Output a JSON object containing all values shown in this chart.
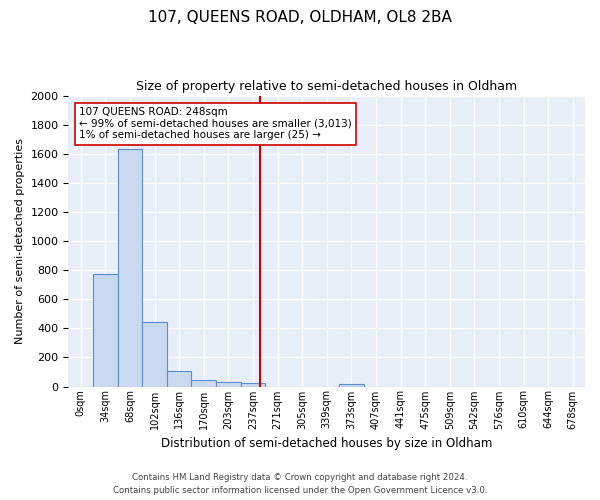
{
  "title": "107, QUEENS ROAD, OLDHAM, OL8 2BA",
  "subtitle": "Size of property relative to semi-detached houses in Oldham",
  "xlabel": "Distribution of semi-detached houses by size in Oldham",
  "ylabel": "Number of semi-detached properties",
  "footnote1": "Contains HM Land Registry data © Crown copyright and database right 2024.",
  "footnote2": "Contains public sector information licensed under the Open Government Licence v3.0.",
  "bin_labels": [
    "0sqm",
    "34sqm",
    "68sqm",
    "102sqm",
    "136sqm",
    "170sqm",
    "203sqm",
    "237sqm",
    "271sqm",
    "305sqm",
    "339sqm",
    "373sqm",
    "407sqm",
    "441sqm",
    "475sqm",
    "509sqm",
    "542sqm",
    "576sqm",
    "610sqm",
    "644sqm",
    "678sqm"
  ],
  "bar_values": [
    0,
    770,
    1630,
    445,
    110,
    42,
    28,
    22,
    0,
    0,
    0,
    20,
    0,
    0,
    0,
    0,
    0,
    0,
    0,
    0,
    0
  ],
  "property_value": 248,
  "property_label": "107 QUEENS ROAD: 248sqm",
  "pct_smaller": 99,
  "n_smaller": 3013,
  "pct_larger": 1,
  "n_larger": 25,
  "bar_color": "#c9d9f0",
  "bar_edge_color": "#5b8fc9",
  "vline_color": "#cc0000",
  "annotation_box_color": "#ffffff",
  "annotation_box_edge": "#cc0000",
  "background_color": "#e8eef8",
  "ylim": [
    0,
    2000
  ],
  "bin_width": 34,
  "yticks": [
    0,
    200,
    400,
    600,
    800,
    1000,
    1200,
    1400,
    1600,
    1800,
    2000
  ]
}
